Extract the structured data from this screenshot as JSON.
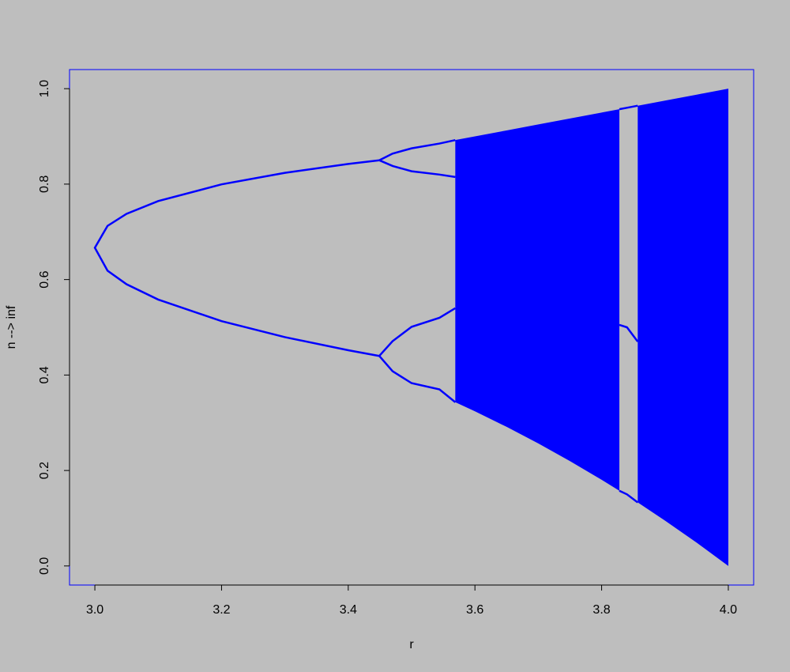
{
  "chart_data": {
    "type": "bifurcation",
    "xlabel": "r",
    "ylabel": "n --> inf",
    "color": "#0000ff",
    "xlim": [
      2.96,
      4.04
    ],
    "ylim": [
      -0.04,
      1.04
    ],
    "xticks": [
      {
        "value": 3,
        "label": "3.0"
      },
      3.2,
      3.4,
      3.6,
      3.8,
      {
        "value": 4,
        "label": "4.0"
      }
    ],
    "yticks": [
      {
        "value": 0,
        "label": "0.0"
      },
      0.2,
      0.4,
      0.6,
      0.8,
      {
        "value": 1,
        "label": "1.0"
      }
    ],
    "series": [
      {
        "x": [
          3.449,
          3.4,
          3.3,
          3.2,
          3.1,
          3.05,
          3.02,
          3.0,
          3.02,
          3.05,
          3.1,
          3.2,
          3.3,
          3.4,
          3.449
        ],
        "values": [
          0.85,
          0.8422,
          0.8236,
          0.7995,
          0.7645,
          0.7377,
          0.7125,
          0.6667,
          0.6186,
          0.5902,
          0.5581,
          0.513,
          0.4794,
          0.452,
          0.44
        ]
      },
      {
        "x": [
          3.449,
          3.47,
          3.5,
          3.544,
          3.569
        ],
        "values": [
          0.85,
          0.864,
          0.875,
          0.885,
          0.8923
        ]
      },
      {
        "x": [
          3.449,
          3.47,
          3.5,
          3.544,
          3.569
        ],
        "values": [
          0.85,
          0.838,
          0.827,
          0.82,
          0.815
        ]
      },
      {
        "x": [
          3.449,
          3.47,
          3.5,
          3.544,
          3.569
        ],
        "values": [
          0.44,
          0.471,
          0.501,
          0.52,
          0.54
        ]
      },
      {
        "x": [
          3.449,
          3.47,
          3.5,
          3.544,
          3.569
        ],
        "values": [
          0.44,
          0.408,
          0.383,
          0.37,
          0.343
        ]
      },
      {
        "x": [
          3.828,
          3.84,
          3.857
        ],
        "values": [
          0.957,
          0.96,
          0.9643
        ]
      },
      {
        "x": [
          3.828,
          3.84,
          3.857
        ],
        "values": [
          0.505,
          0.5,
          0.47
        ]
      },
      {
        "x": [
          3.828,
          3.84,
          3.857
        ],
        "values": [
          0.1575,
          0.15,
          0.133
        ]
      }
    ],
    "bands": [
      {
        "x": [
          3.569,
          3.6,
          3.65,
          3.7,
          3.75,
          3.8,
          3.828,
          3.84,
          3.857,
          3.9,
          3.95,
          4.0
        ],
        "low": [
          0.343,
          0.324,
          0.2914,
          0.2567,
          0.2197,
          0.1805,
          0.1575,
          null,
          0.133,
          0.0951,
          0.0488,
          0
        ],
        "high": [
          0.8923,
          0.9,
          0.9125,
          0.925,
          0.9375,
          0.95,
          0.957,
          null,
          0.9643,
          0.975,
          0.9875,
          1
        ]
      }
    ]
  }
}
